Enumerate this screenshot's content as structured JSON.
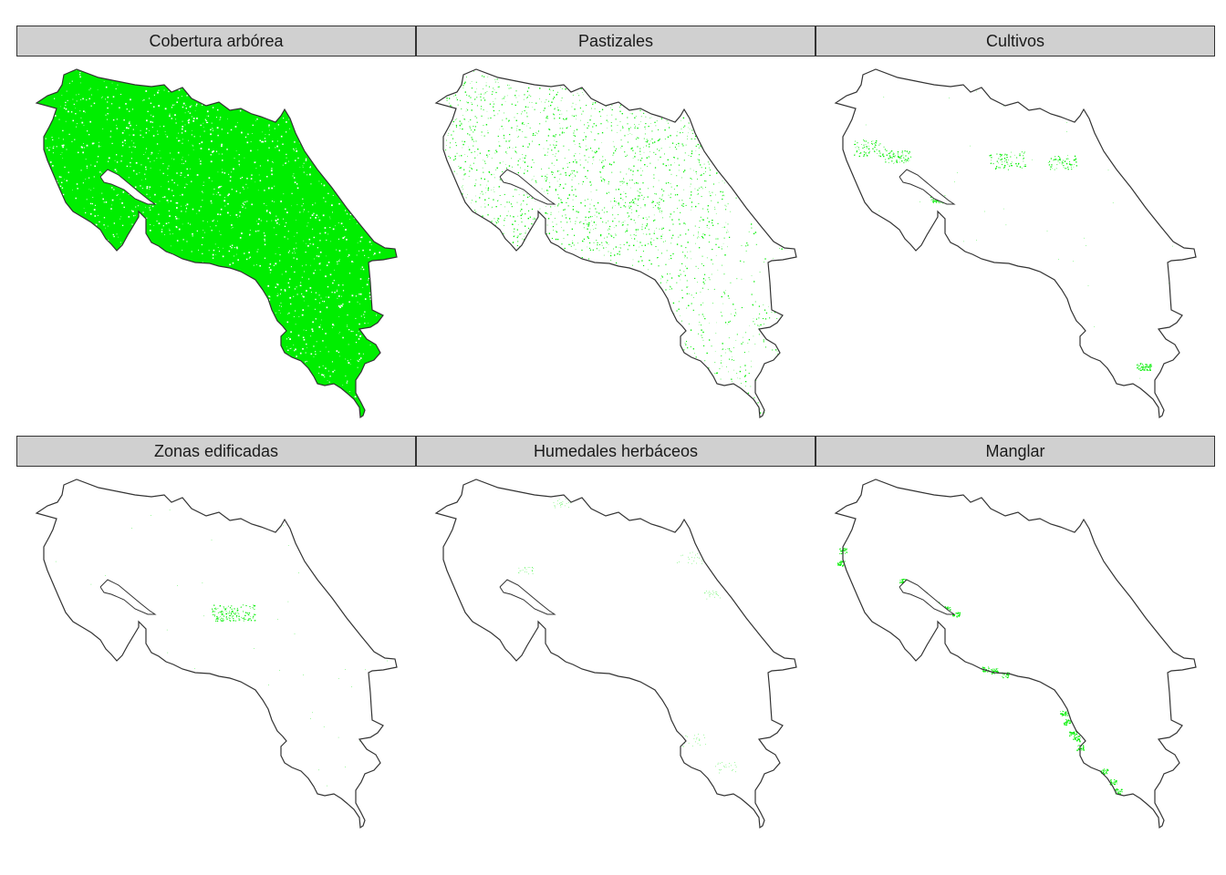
{
  "figure": {
    "fill_color": "#00ee00",
    "outline_color": "#333333",
    "strip_color": "#d0d0d0"
  },
  "panels": [
    {
      "title": "Cobertura arbórea",
      "coverage": "very high"
    },
    {
      "title": "Pastizales",
      "coverage": "moderate"
    },
    {
      "title": "Cultivos",
      "coverage": "low"
    },
    {
      "title": "Zonas edificadas",
      "coverage": "very low"
    },
    {
      "title": "Humedales herbáceos",
      "coverage": "very low"
    },
    {
      "title": "Manglar",
      "coverage": "coastal only"
    }
  ]
}
